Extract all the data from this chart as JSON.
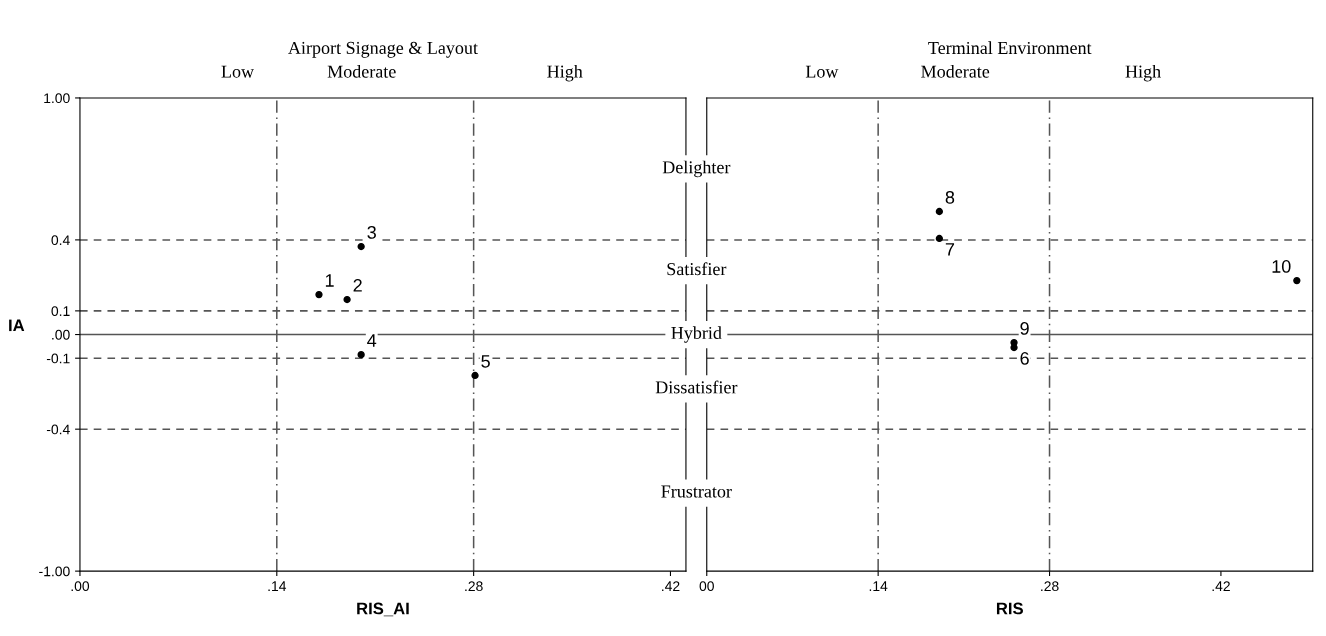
{
  "chart_data": [
    {
      "type": "scatter",
      "title": "Airport Signage & Layout",
      "xlabel": "RIS_AI",
      "ylabel": "IA",
      "color": "#000000",
      "marker": "circle",
      "grid": false,
      "x": [
        0.17,
        0.19,
        0.2,
        0.2,
        0.281
      ],
      "values": [
        0.169,
        0.148,
        0.372,
        -0.085,
        -0.173
      ],
      "xlim": [
        0,
        0.431
      ],
      "ylim": [
        -1,
        1
      ],
      "xticks": [
        {
          "value": 0,
          "label": ".00"
        },
        {
          "value": 0.14,
          "label": ".14"
        },
        {
          "value": 0.28,
          "label": ".28"
        },
        {
          "value": 0.42,
          "label": ".42"
        }
      ],
      "yticks": [
        {
          "value": -1,
          "label": "-1.00"
        },
        -0.4,
        -0.1,
        {
          "value": 0,
          "label": ".00"
        },
        0.1,
        0.4,
        {
          "value": 1,
          "label": "1.00"
        }
      ],
      "ref_lines": [
        {
          "axis": "x",
          "value": 0.14,
          "line_style": "dashdot",
          "color": "#555555"
        },
        {
          "axis": "x",
          "value": 0.28,
          "line_style": "dashdot",
          "color": "#555555"
        },
        {
          "axis": "y",
          "value": 0.4,
          "line_style": "dashed",
          "color": "#555555"
        },
        {
          "axis": "y",
          "value": 0.1,
          "line_style": "dashed",
          "color": "#555555"
        },
        {
          "axis": "y",
          "value": 0,
          "line_style": "solid",
          "color": "#555555"
        },
        {
          "axis": "y",
          "value": -0.1,
          "line_style": "dashed",
          "color": "#555555"
        },
        {
          "axis": "y",
          "value": -0.4,
          "line_style": "dashed",
          "color": "#555555"
        }
      ],
      "annotations": [
        {
          "text": "1",
          "x": 0.17,
          "y": 0.169
        },
        {
          "text": "2",
          "x": 0.19,
          "y": 0.148
        },
        {
          "text": "3",
          "x": 0.2,
          "y": 0.372
        },
        {
          "text": "4",
          "x": 0.2,
          "y": -0.085
        },
        {
          "text": "5",
          "x": 0.281,
          "y": -0.173
        },
        "Low",
        "Moderate",
        "High",
        "Delighter",
        "Satisfier",
        "Hybrid",
        "Dissatisfier",
        "Frustrator"
      ]
    },
    {
      "type": "scatter",
      "title": "Terminal Environment",
      "xlabel": "RIS",
      "color": "#000000",
      "marker": "circle",
      "grid": false,
      "tick_labels": "x",
      "x": [
        0.251,
        0.19,
        0.19,
        0.251,
        0.482
      ],
      "values": [
        -0.055,
        0.406,
        0.52,
        -0.034,
        0.228
      ],
      "xlim": [
        0,
        0.495
      ],
      "ylim": [
        -1,
        1
      ],
      "xticks": [
        {
          "value": 0,
          "label": "00"
        },
        {
          "value": 0.14,
          "label": ".14"
        },
        {
          "value": 0.28,
          "label": ".28"
        },
        {
          "value": 0.42,
          "label": ".42"
        }
      ],
      "ref_lines": [
        {
          "axis": "x",
          "value": 0.14,
          "line_style": "dashdot",
          "color": "#555555"
        },
        {
          "axis": "x",
          "value": 0.28,
          "line_style": "dashdot",
          "color": "#555555"
        },
        {
          "axis": "y",
          "value": 0.4,
          "line_style": "dashed",
          "color": "#555555"
        },
        {
          "axis": "y",
          "value": 0.1,
          "line_style": "dashed",
          "color": "#555555"
        },
        {
          "axis": "y",
          "value": 0,
          "line_style": "solid",
          "color": "#555555"
        },
        {
          "axis": "y",
          "value": -0.1,
          "line_style": "dashed",
          "color": "#555555"
        },
        {
          "axis": "y",
          "value": -0.4,
          "line_style": "dashed",
          "color": "#555555"
        }
      ],
      "annotations": [
        {
          "text": "6",
          "x": 0.251,
          "y": -0.055
        },
        {
          "text": "7",
          "x": 0.19,
          "y": 0.406
        },
        {
          "text": "8",
          "x": 0.19,
          "y": 0.52
        },
        {
          "text": "9",
          "x": 0.251,
          "y": -0.034
        },
        {
          "text": "10",
          "x": 0.482,
          "y": 0.228
        },
        "Low",
        "Moderate",
        "High"
      ]
    }
  ]
}
